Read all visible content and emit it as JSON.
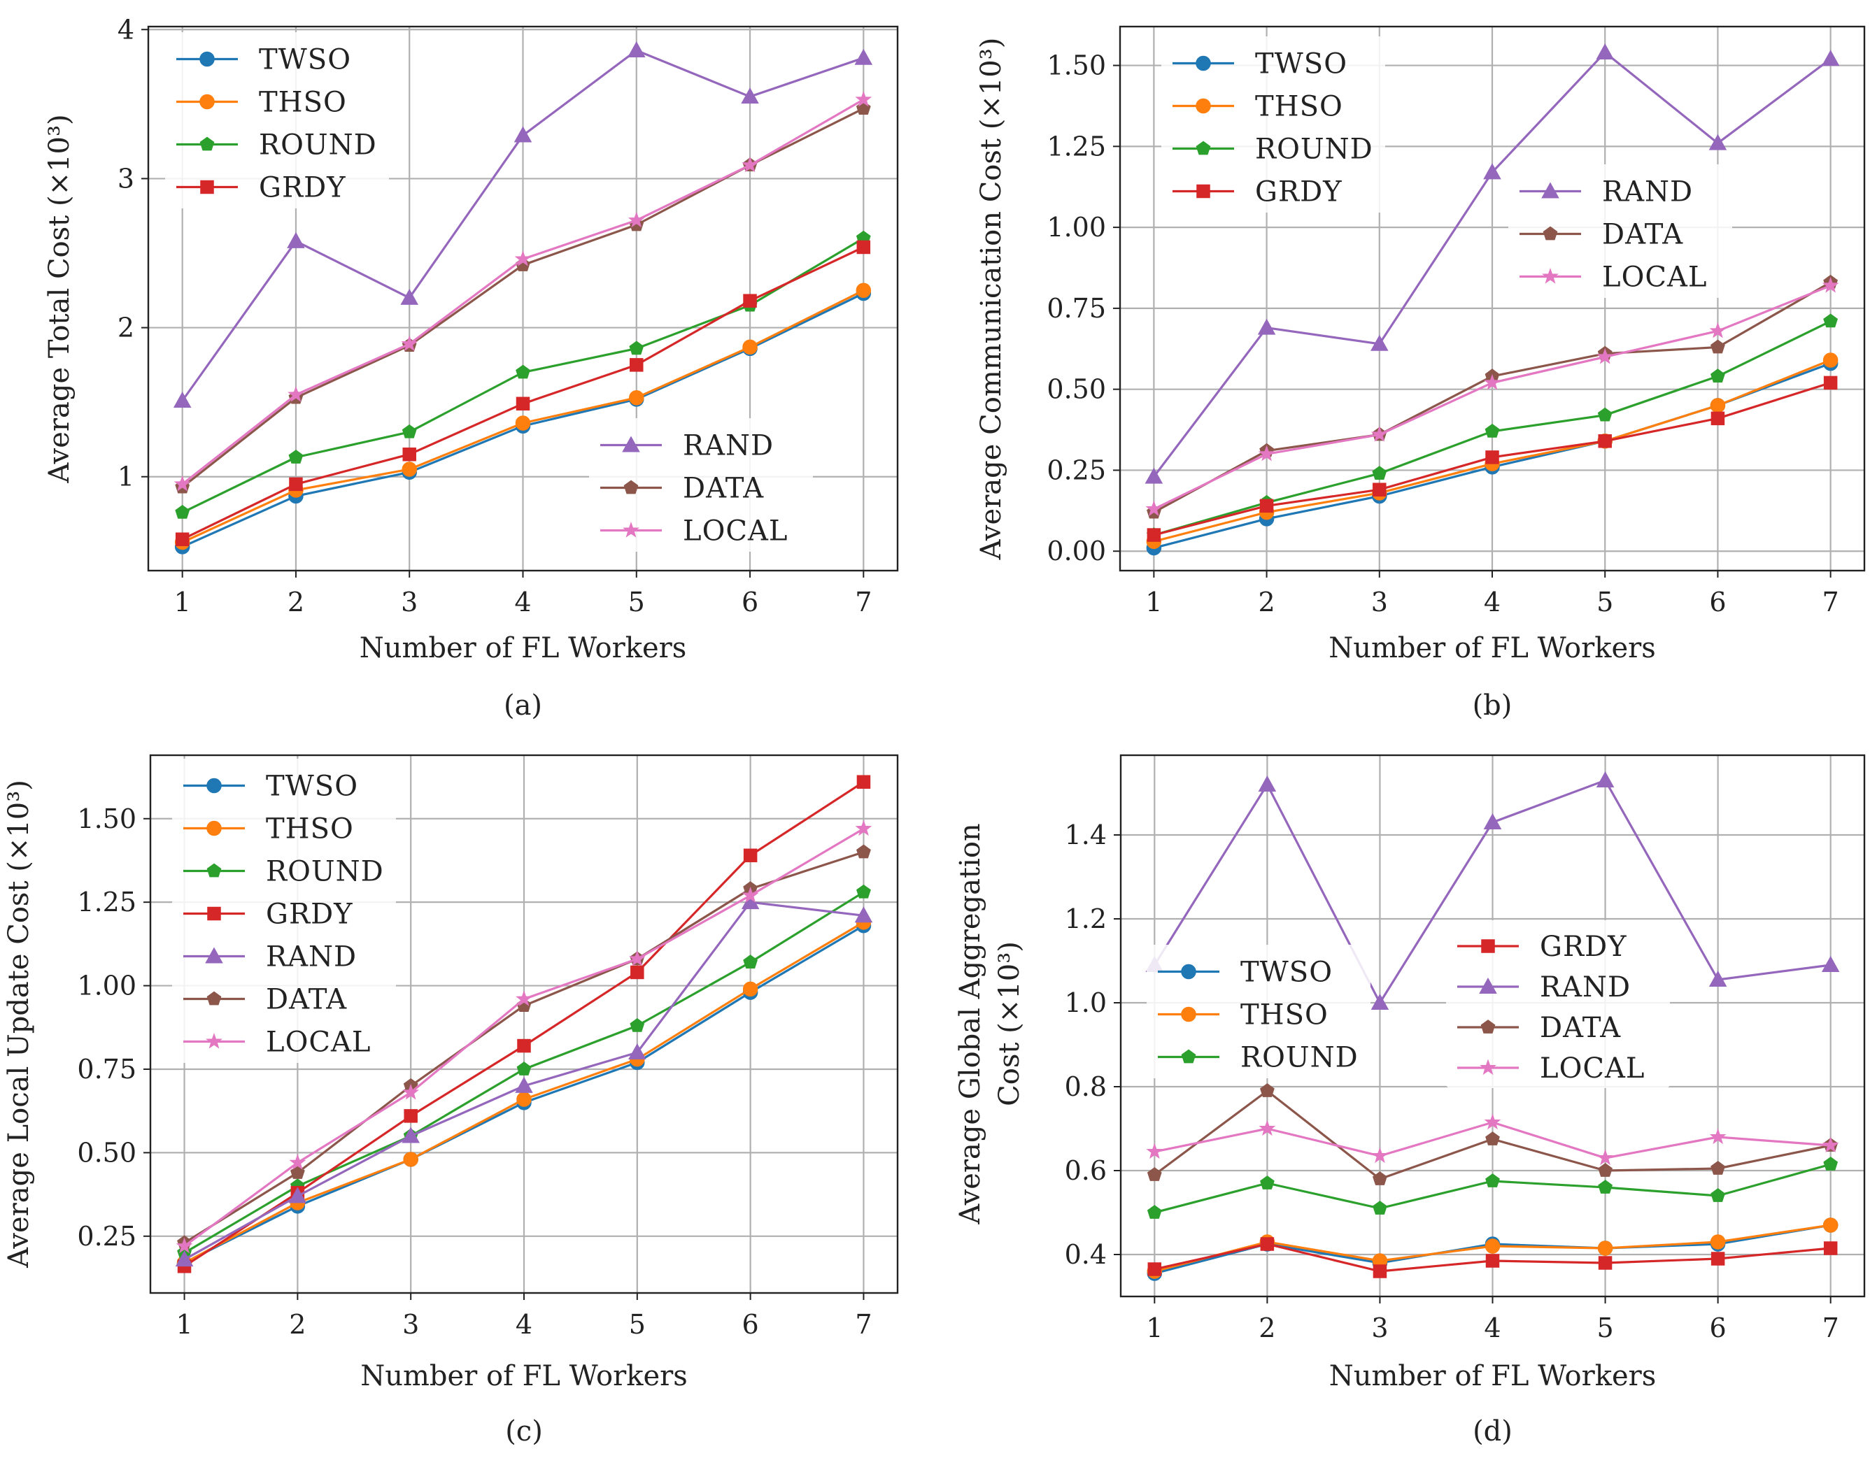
{
  "colors": {
    "TWSO": "#1f77b4",
    "THSO": "#ff7f0e",
    "ROUND": "#2ca02c",
    "GRDY": "#d62728",
    "RAND": "#9467bd",
    "DATA": "#8c564b",
    "LOCAL": "#e377c2"
  },
  "markers": {
    "TWSO": "circle",
    "THSO": "circle",
    "ROUND": "pentagon",
    "GRDY": "square",
    "RAND": "triangle",
    "DATA": "pentagon",
    "LOCAL": "star"
  },
  "chart_data": [
    {
      "type": "line",
      "caption": "(a)",
      "xlabel": "Number of FL Workers",
      "ylabel": "Average Total Cost (×10³)",
      "x": [
        1,
        2,
        3,
        4,
        5,
        6,
        7
      ],
      "xlim": [
        0.7,
        7.3
      ],
      "ylim": [
        0.37,
        4.02
      ],
      "yticks": [
        1,
        2,
        3,
        4
      ],
      "ytick_labels": [
        "1",
        "2",
        "3",
        "4"
      ],
      "grid": true,
      "series": [
        {
          "name": "TWSO",
          "values": [
            0.53,
            0.87,
            1.03,
            1.34,
            1.52,
            1.86,
            2.23
          ]
        },
        {
          "name": "THSO",
          "values": [
            0.56,
            0.91,
            1.05,
            1.36,
            1.53,
            1.87,
            2.25
          ]
        },
        {
          "name": "ROUND",
          "values": [
            0.76,
            1.13,
            1.3,
            1.7,
            1.86,
            2.15,
            2.6
          ]
        },
        {
          "name": "GRDY",
          "values": [
            0.58,
            0.95,
            1.15,
            1.49,
            1.75,
            2.18,
            2.54
          ]
        },
        {
          "name": "RAND",
          "values": [
            1.51,
            2.58,
            2.2,
            3.29,
            3.86,
            3.55,
            3.81
          ]
        },
        {
          "name": "DATA",
          "values": [
            0.93,
            1.53,
            1.88,
            2.42,
            2.69,
            3.09,
            3.47
          ]
        },
        {
          "name": "LOCAL",
          "values": [
            0.95,
            1.55,
            1.89,
            2.46,
            2.72,
            3.09,
            3.53
          ]
        }
      ],
      "legends": [
        {
          "entries": [
            "TWSO",
            "THSO",
            "ROUND",
            "GRDY"
          ]
        },
        {
          "entries": [
            "RAND",
            "DATA",
            "LOCAL"
          ]
        }
      ]
    },
    {
      "type": "line",
      "caption": "(b)",
      "xlabel": "Number of FL Workers",
      "ylabel": "Average Communication Cost (×10³)",
      "x": [
        1,
        2,
        3,
        4,
        5,
        6,
        7
      ],
      "xlim": [
        0.7,
        7.3
      ],
      "ylim": [
        -0.06,
        1.62
      ],
      "yticks": [
        0,
        0.25,
        0.5,
        0.75,
        1.0,
        1.25,
        1.5
      ],
      "ytick_labels": [
        "0.00",
        "0.25",
        "0.50",
        "0.75",
        "1.00",
        "1.25",
        "1.50"
      ],
      "grid": true,
      "series": [
        {
          "name": "TWSO",
          "values": [
            0.01,
            0.1,
            0.17,
            0.26,
            0.34,
            0.45,
            0.58
          ]
        },
        {
          "name": "THSO",
          "values": [
            0.03,
            0.12,
            0.18,
            0.27,
            0.34,
            0.45,
            0.59
          ]
        },
        {
          "name": "ROUND",
          "values": [
            0.05,
            0.15,
            0.24,
            0.37,
            0.42,
            0.54,
            0.71
          ]
        },
        {
          "name": "GRDY",
          "values": [
            0.05,
            0.14,
            0.19,
            0.29,
            0.34,
            0.41,
            0.52
          ]
        },
        {
          "name": "RAND",
          "values": [
            0.23,
            0.69,
            0.64,
            1.17,
            1.54,
            1.26,
            1.52
          ]
        },
        {
          "name": "DATA",
          "values": [
            0.12,
            0.31,
            0.36,
            0.54,
            0.61,
            0.63,
            0.83
          ]
        },
        {
          "name": "LOCAL",
          "values": [
            0.13,
            0.3,
            0.36,
            0.52,
            0.6,
            0.68,
            0.82
          ]
        }
      ],
      "legends": [
        {
          "entries": [
            "TWSO",
            "THSO",
            "ROUND",
            "GRDY"
          ]
        },
        {
          "entries": [
            "RAND",
            "DATA",
            "LOCAL"
          ]
        }
      ]
    },
    {
      "type": "line",
      "caption": "(c)",
      "xlabel": "Number of FL Workers",
      "ylabel": "Average Local Update Cost (×10³)",
      "x": [
        1,
        2,
        3,
        4,
        5,
        6,
        7
      ],
      "xlim": [
        0.7,
        7.3
      ],
      "ylim": [
        0.08,
        1.69
      ],
      "yticks": [
        0.25,
        0.5,
        0.75,
        1.0,
        1.25,
        1.5
      ],
      "ytick_labels": [
        "0.25",
        "0.50",
        "0.75",
        "1.00",
        "1.25",
        "1.50"
      ],
      "grid": true,
      "series": [
        {
          "name": "TWSO",
          "values": [
            0.17,
            0.34,
            0.48,
            0.65,
            0.77,
            0.98,
            1.18
          ]
        },
        {
          "name": "THSO",
          "values": [
            0.17,
            0.35,
            0.48,
            0.66,
            0.78,
            0.99,
            1.19
          ]
        },
        {
          "name": "ROUND",
          "values": [
            0.2,
            0.4,
            0.55,
            0.75,
            0.88,
            1.07,
            1.28
          ]
        },
        {
          "name": "GRDY",
          "values": [
            0.16,
            0.38,
            0.61,
            0.82,
            1.04,
            1.39,
            1.61
          ]
        },
        {
          "name": "RAND",
          "values": [
            0.18,
            0.37,
            0.55,
            0.7,
            0.8,
            1.25,
            1.21
          ]
        },
        {
          "name": "DATA",
          "values": [
            0.23,
            0.44,
            0.7,
            0.94,
            1.08,
            1.29,
            1.4
          ]
        },
        {
          "name": "LOCAL",
          "values": [
            0.22,
            0.47,
            0.68,
            0.96,
            1.08,
            1.27,
            1.47
          ]
        }
      ],
      "legends": [
        {
          "entries": [
            "TWSO",
            "THSO",
            "ROUND",
            "GRDY",
            "RAND",
            "DATA",
            "LOCAL"
          ]
        }
      ]
    },
    {
      "type": "line",
      "caption": "(d)",
      "xlabel": "Number of FL Workers",
      "ylabel": [
        "Average Global Aggregation",
        "Cost (×10³)"
      ],
      "x": [
        1,
        2,
        3,
        4,
        5,
        6,
        7
      ],
      "xlim": [
        0.7,
        7.3
      ],
      "ylim": [
        0.3,
        1.59
      ],
      "yticks": [
        0.4,
        0.6,
        0.8,
        1.0,
        1.2,
        1.4
      ],
      "ytick_labels": [
        "0.4",
        "0.6",
        "0.8",
        "1.0",
        "1.2",
        "1.4"
      ],
      "grid": true,
      "series": [
        {
          "name": "TWSO",
          "values": [
            0.355,
            0.425,
            0.38,
            0.425,
            0.415,
            0.425,
            0.47
          ]
        },
        {
          "name": "THSO",
          "values": [
            0.36,
            0.43,
            0.385,
            0.42,
            0.415,
            0.43,
            0.47
          ]
        },
        {
          "name": "ROUND",
          "values": [
            0.5,
            0.57,
            0.51,
            0.575,
            0.56,
            0.54,
            0.615
          ]
        },
        {
          "name": "GRDY",
          "values": [
            0.365,
            0.425,
            0.36,
            0.385,
            0.38,
            0.39,
            0.415
          ]
        },
        {
          "name": "RAND",
          "values": [
            1.09,
            1.52,
            1.0,
            1.43,
            1.53,
            1.055,
            1.09
          ]
        },
        {
          "name": "DATA",
          "values": [
            0.59,
            0.79,
            0.58,
            0.675,
            0.6,
            0.605,
            0.66
          ]
        },
        {
          "name": "LOCAL",
          "values": [
            0.645,
            0.7,
            0.635,
            0.715,
            0.63,
            0.68,
            0.66
          ]
        }
      ],
      "legends": [
        {
          "entries": [
            "TWSO",
            "THSO",
            "ROUND"
          ]
        },
        {
          "entries": [
            "GRDY",
            "RAND",
            "DATA",
            "LOCAL"
          ]
        }
      ]
    }
  ]
}
